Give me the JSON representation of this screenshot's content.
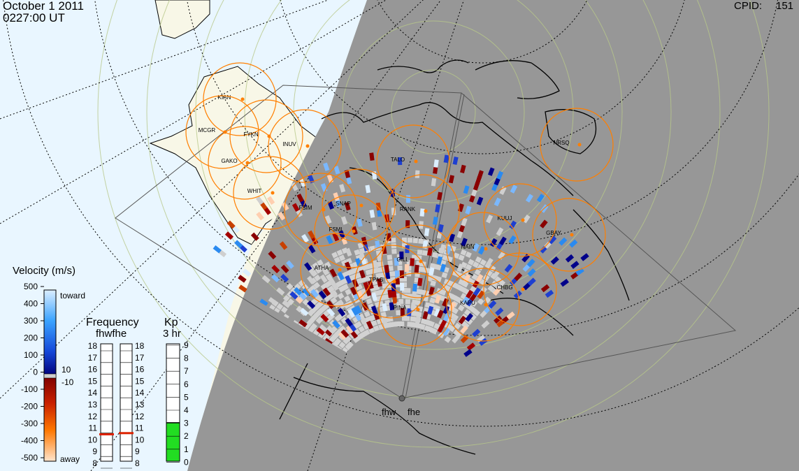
{
  "header": {
    "date": "October 1 2011",
    "time": "0227:00 UT",
    "cpid_label": "CPID:",
    "cpid_value": "151"
  },
  "radar_labels": {
    "left": "fhw",
    "right": "fhe"
  },
  "stations": [
    {
      "code": "KIAN"
    },
    {
      "code": "MCGR"
    },
    {
      "code": "FYKN"
    },
    {
      "code": "INUV"
    },
    {
      "code": "GAKO"
    },
    {
      "code": "WHIT"
    },
    {
      "code": "TALO"
    },
    {
      "code": "NRSQ"
    },
    {
      "code": "FSIM"
    },
    {
      "code": "SNAP"
    },
    {
      "code": "RANK"
    },
    {
      "code": "FSMI"
    },
    {
      "code": "KUUJ"
    },
    {
      "code": "GBAY"
    },
    {
      "code": "ATHA"
    },
    {
      "code": "GILL"
    },
    {
      "code": "NAIN"
    },
    {
      "code": "TPAS"
    },
    {
      "code": "CHBG"
    },
    {
      "code": "PINA"
    },
    {
      "code": "KAPU"
    }
  ],
  "velocity_scale": {
    "title": "Velocity (m/s)",
    "ticks": [
      "500",
      "400",
      "300",
      "200",
      "100",
      "0",
      "-100",
      "-200",
      "-300",
      "-400",
      "-500"
    ],
    "toward_label": "toward",
    "away_label": "away",
    "pos_threshold": "10",
    "neg_threshold": "-10"
  },
  "frequency": {
    "title": "Frequency",
    "subtitle": "fhwfhe",
    "ticks": [
      "18",
      "17",
      "16",
      "15",
      "14",
      "13",
      "12",
      "11",
      "10",
      "9",
      "8"
    ],
    "fhw_mhz": 10.8,
    "fhe_mhz": 10.9
  },
  "kp": {
    "title": "Kp",
    "subtitle": "3 hr",
    "ticks": [
      "9",
      "8",
      "7",
      "6",
      "5",
      "4",
      "3",
      "2",
      "1",
      "0"
    ],
    "value": 3
  },
  "colors": {
    "night": "#979797",
    "day_bg": "#e9f6ff",
    "land_day": "#f8f7e7",
    "station": "#ff7f00",
    "kp_bar": "#22dd22",
    "freq_marker": "#dd2200"
  },
  "layers": {
    "fov_outline": true,
    "geographic_grid": "dotted",
    "magnetic_grid": "solid"
  }
}
